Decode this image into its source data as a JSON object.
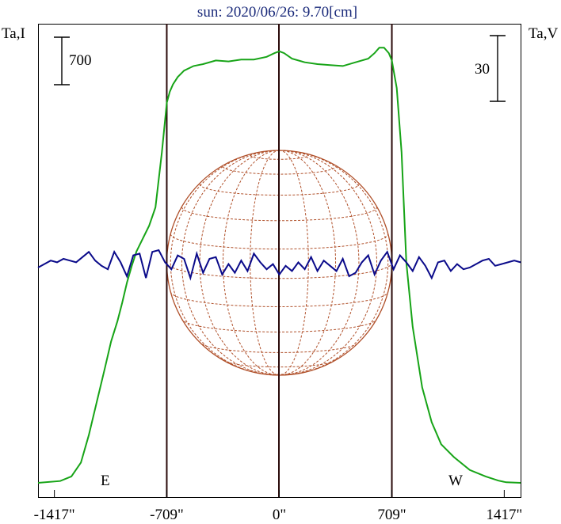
{
  "chart_data": {
    "type": "line",
    "title": "sun: 2020/06/26: 9.70[cm]",
    "left_axis_label": "Ta,I",
    "right_axis_label": "Ta,V",
    "left_scale_bar_label": "700",
    "right_scale_bar_label": "30",
    "x_unit": "arcsec",
    "xlim": [
      -1520,
      1520
    ],
    "x_ticks": [
      -1417,
      -709,
      0,
      709,
      1417
    ],
    "x_tick_labels": [
      "-1417\"",
      "-709\"",
      "0\"",
      "709\"",
      "1417\""
    ],
    "disk_edges": [
      -709,
      709
    ],
    "edge_labels": {
      "east": "E",
      "west": "W"
    },
    "grid": false,
    "colors": {
      "intensity": "#17a417",
      "polarization": "#0a0a8a",
      "disk": "#b0502a",
      "frame": "#000000",
      "edge_lines": "#2a0a0a",
      "title": "#1a2a7a"
    },
    "series": [
      {
        "key": "intensity",
        "x": [
          -1520,
          -1380,
          -1310,
          -1250,
          -1200,
          -1150,
          -1100,
          -1060,
          -1020,
          -990,
          -960,
          -930,
          -900,
          -860,
          -820,
          -780,
          -740,
          -709,
          -690,
          -670,
          -640,
          -600,
          -540,
          -480,
          -400,
          -320,
          -240,
          -160,
          -80,
          -30,
          0,
          30,
          80,
          160,
          240,
          320,
          400,
          480,
          560,
          600,
          630,
          660,
          690,
          709,
          740,
          770,
          800,
          840,
          900,
          960,
          1020,
          1100,
          1200,
          1300,
          1380,
          1430,
          1520
        ],
        "y": [
          0,
          0.1,
          0.35,
          1.1,
          2.6,
          4.4,
          6.2,
          7.7,
          8.8,
          9.8,
          10.9,
          11.8,
          12.6,
          13.3,
          14.0,
          15.0,
          18.0,
          20.7,
          21.3,
          21.7,
          22.1,
          22.45,
          22.7,
          22.8,
          23.0,
          22.95,
          23.05,
          23.05,
          23.2,
          23.4,
          23.5,
          23.4,
          23.1,
          22.9,
          22.8,
          22.75,
          22.7,
          22.9,
          23.1,
          23.4,
          23.7,
          23.7,
          23.4,
          23.0,
          21.5,
          18.0,
          12.0,
          8.5,
          5.2,
          3.3,
          2.1,
          1.4,
          0.7,
          0.35,
          0.12,
          0.03,
          0
        ]
      },
      {
        "key": "polarization",
        "x": [
          -1520,
          -1480,
          -1440,
          -1400,
          -1360,
          -1320,
          -1280,
          -1240,
          -1200,
          -1160,
          -1120,
          -1080,
          -1040,
          -1000,
          -960,
          -920,
          -880,
          -840,
          -800,
          -760,
          -720,
          -680,
          -640,
          -600,
          -560,
          -520,
          -480,
          -440,
          -400,
          -360,
          -320,
          -280,
          -240,
          -200,
          -160,
          -120,
          -80,
          -40,
          0,
          40,
          80,
          120,
          160,
          200,
          240,
          280,
          320,
          360,
          400,
          440,
          480,
          520,
          560,
          600,
          640,
          680,
          720,
          760,
          800,
          840,
          880,
          920,
          960,
          1000,
          1040,
          1080,
          1120,
          1160,
          1200,
          1240,
          1280,
          1320,
          1360,
          1400,
          1440,
          1480,
          1520
        ],
        "y": [
          0,
          2,
          4,
          3,
          5,
          4,
          3,
          6,
          9,
          4,
          1,
          -1,
          9,
          3,
          -5,
          7,
          8,
          -6,
          9,
          10,
          3,
          -1,
          7,
          5,
          -6,
          8,
          -3,
          5,
          6,
          -4,
          2,
          -3,
          4,
          -2,
          8,
          3,
          -1,
          2,
          -4,
          1,
          -2,
          3,
          -1,
          6,
          -2,
          4,
          1,
          -2,
          5,
          -5,
          -3,
          3,
          7,
          -4,
          4,
          9,
          -1,
          7,
          3,
          -2,
          6,
          1,
          -6,
          3,
          4,
          -2,
          2,
          -1,
          0,
          2,
          4,
          5,
          1,
          2,
          3,
          4,
          3
        ]
      }
    ]
  }
}
